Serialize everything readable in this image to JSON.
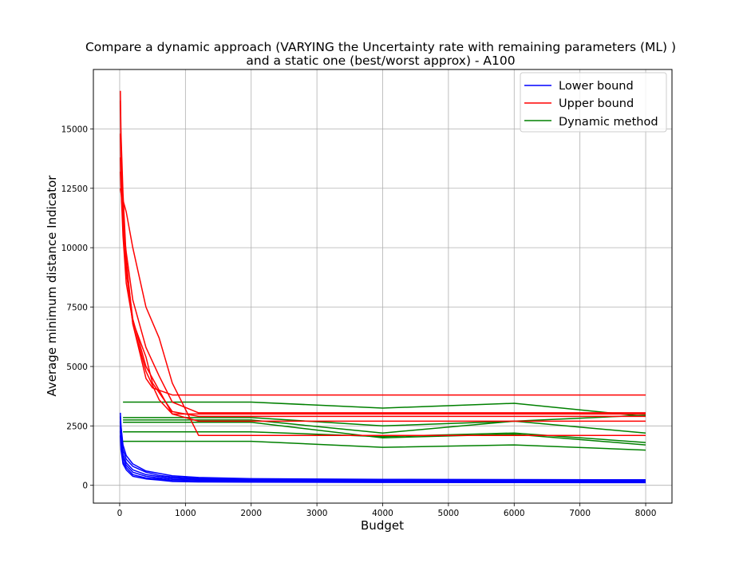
{
  "chart_data": {
    "type": "line",
    "title": "Compare a dynamic approach (VARYING the Uncertainty rate with remaining parameters (ML) )",
    "subtitle": "and a static one (best/worst approx)    - A100",
    "xlabel": "Budget",
    "ylabel": "Average minimum distance Indicator",
    "xlim": [
      -400,
      8400
    ],
    "ylim": [
      -750,
      17500
    ],
    "x_ticks": [
      0,
      1000,
      2000,
      3000,
      4000,
      5000,
      6000,
      7000,
      8000
    ],
    "y_ticks": [
      0,
      2500,
      5000,
      7500,
      10000,
      12500,
      15000
    ],
    "grid": true,
    "legend_position": "top-right",
    "legend": [
      {
        "label": "Lower bound",
        "color": "#0000ff"
      },
      {
        "label": "Upper bound",
        "color": "#ff0000"
      },
      {
        "label": "Dynamic method",
        "color": "#008000"
      }
    ],
    "series": [
      {
        "group": "Lower bound",
        "color": "#0000ff",
        "x": [
          10,
          20,
          50,
          100,
          200,
          400,
          600,
          800,
          1200,
          2000,
          4000,
          6000,
          8000
        ],
        "y": [
          3050,
          2500,
          1700,
          1250,
          900,
          600,
          500,
          400,
          330,
          280,
          250,
          240,
          230
        ]
      },
      {
        "group": "Lower bound",
        "color": "#0000ff",
        "x": [
          10,
          20,
          50,
          100,
          200,
          400,
          600,
          800,
          1200,
          2000,
          4000,
          6000,
          8000
        ],
        "y": [
          2900,
          2300,
          1500,
          1100,
          800,
          550,
          420,
          350,
          290,
          250,
          230,
          220,
          210
        ]
      },
      {
        "group": "Lower bound",
        "color": "#0000ff",
        "x": [
          10,
          20,
          50,
          100,
          200,
          400,
          600,
          800,
          1200,
          2000,
          4000,
          6000,
          8000
        ],
        "y": [
          2700,
          2100,
          1300,
          950,
          650,
          450,
          370,
          300,
          250,
          220,
          200,
          195,
          190
        ]
      },
      {
        "group": "Lower bound",
        "color": "#0000ff",
        "x": [
          10,
          20,
          50,
          100,
          200,
          400,
          600,
          800,
          1200,
          2000,
          4000,
          6000,
          8000
        ],
        "y": [
          2500,
          1900,
          1150,
          850,
          550,
          380,
          310,
          250,
          210,
          190,
          175,
          170,
          165
        ]
      },
      {
        "group": "Lower bound",
        "color": "#0000ff",
        "x": [
          10,
          20,
          50,
          100,
          200,
          400,
          600,
          800,
          1200,
          2000,
          4000,
          6000,
          8000
        ],
        "y": [
          2300,
          1700,
          1000,
          750,
          450,
          310,
          260,
          200,
          170,
          160,
          150,
          145,
          140
        ]
      },
      {
        "group": "Lower bound",
        "color": "#0000ff",
        "x": [
          10,
          20,
          50,
          100,
          200,
          400,
          600,
          800,
          1200,
          2000,
          4000,
          6000,
          8000
        ],
        "y": [
          2100,
          1500,
          900,
          650,
          380,
          270,
          220,
          160,
          140,
          130,
          120,
          115,
          110
        ]
      },
      {
        "group": "Upper bound",
        "color": "#ff0000",
        "x": [
          10,
          20,
          50,
          100,
          200,
          400,
          500,
          800,
          1200,
          2000,
          4000,
          6000,
          8000
        ],
        "y": [
          16600,
          14800,
          12300,
          9500,
          6800,
          4500,
          4100,
          3800,
          3800,
          3800,
          3800,
          3800,
          3800
        ]
      },
      {
        "group": "Upper bound",
        "color": "#ff0000",
        "x": [
          10,
          20,
          50,
          100,
          200,
          400,
          600,
          800,
          1200,
          2000,
          4000,
          6000,
          8000
        ],
        "y": [
          16200,
          14200,
          11800,
          9200,
          7000,
          5000,
          4000,
          3000,
          3000,
          3000,
          3000,
          3000,
          3000
        ]
      },
      {
        "group": "Upper bound",
        "color": "#ff0000",
        "x": [
          10,
          20,
          50,
          100,
          200,
          400,
          600,
          800,
          1200,
          2000,
          4000,
          6000,
          8000
        ],
        "y": [
          14800,
          13200,
          11000,
          9000,
          6800,
          4800,
          3600,
          3000,
          2700,
          2700,
          2700,
          2700,
          2700
        ]
      },
      {
        "group": "Upper bound",
        "color": "#ff0000",
        "x": [
          10,
          20,
          50,
          100,
          200,
          400,
          500,
          800,
          1200,
          2000,
          4000,
          6000,
          8000
        ],
        "y": [
          13800,
          12600,
          10500,
          8500,
          6900,
          5400,
          4300,
          3100,
          2900,
          2900,
          2900,
          2900,
          2900
        ]
      },
      {
        "group": "Upper bound",
        "color": "#ff0000",
        "x": [
          10,
          20,
          50,
          100,
          200,
          400,
          600,
          800,
          1200,
          2000,
          4000,
          6000,
          8000
        ],
        "y": [
          13200,
          12500,
          11000,
          9800,
          7800,
          5800,
          4600,
          3500,
          3050,
          3050,
          3050,
          3050,
          3050
        ]
      },
      {
        "group": "Upper bound",
        "color": "#ff0000",
        "x": [
          10,
          20,
          50,
          100,
          200,
          400,
          600,
          800,
          1200,
          2000,
          4000,
          6000,
          8000
        ],
        "y": [
          12500,
          12300,
          12000,
          11500,
          10000,
          7500,
          6200,
          4300,
          2100,
          2100,
          2100,
          2100,
          2100
        ]
      },
      {
        "group": "Dynamic method",
        "color": "#008000",
        "x": [
          50,
          2000,
          4000,
          6000,
          8000
        ],
        "y": [
          3500,
          3500,
          3250,
          3450,
          2900
        ]
      },
      {
        "group": "Dynamic method",
        "color": "#008000",
        "x": [
          50,
          2000,
          4000,
          6000,
          8000
        ],
        "y": [
          2850,
          2850,
          2500,
          2700,
          2950
        ]
      },
      {
        "group": "Dynamic method",
        "color": "#008000",
        "x": [
          50,
          2000,
          4000,
          6000,
          8000
        ],
        "y": [
          2750,
          2750,
          2200,
          2700,
          2200
        ]
      },
      {
        "group": "Dynamic method",
        "color": "#008000",
        "x": [
          50,
          2000,
          4000,
          6000,
          8000
        ],
        "y": [
          2650,
          2650,
          2000,
          2150,
          1700
        ]
      },
      {
        "group": "Dynamic method",
        "color": "#008000",
        "x": [
          50,
          2000,
          4000,
          6000,
          8000
        ],
        "y": [
          2250,
          2250,
          2050,
          2200,
          1800
        ]
      },
      {
        "group": "Dynamic method",
        "color": "#008000",
        "x": [
          50,
          2000,
          4000,
          6000,
          8000
        ],
        "y": [
          1850,
          1850,
          1600,
          1700,
          1480
        ]
      }
    ]
  }
}
